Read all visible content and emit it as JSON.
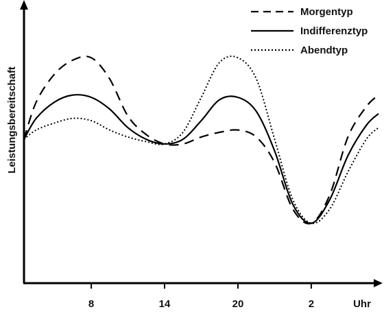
{
  "chart_data": {
    "type": "line",
    "xlabel": "Uhr",
    "ylabel": "Leistungsbereitschaft",
    "x_ticks": [
      "8",
      "14",
      "20",
      "2"
    ],
    "x_tick_values": [
      8,
      14,
      20,
      26
    ],
    "xlim": [
      2.5,
      31.5
    ],
    "ylim": [
      0,
      100
    ],
    "grid": false,
    "legend_position": "top-right",
    "series": [
      {
        "name": "Morgentyp",
        "style": "dashed",
        "x": [
          2.5,
          3.5,
          5,
          6.5,
          8,
          9.5,
          11,
          12.5,
          14,
          15.5,
          17,
          18.5,
          20,
          21.5,
          23,
          24.5,
          26,
          27.5,
          29,
          30.5,
          31.5
        ],
        "y": [
          52,
          68,
          80,
          86,
          87,
          78,
          62,
          54,
          50,
          50,
          53,
          55,
          56,
          53,
          42,
          22,
          16,
          28,
          53,
          66,
          71
        ]
      },
      {
        "name": "Indifferenztyp",
        "style": "solid",
        "x": [
          2.5,
          3.5,
          5,
          6.5,
          8,
          9.5,
          11,
          12.5,
          14,
          15.5,
          17,
          18.5,
          20,
          21.5,
          23,
          24.5,
          26,
          27.5,
          29,
          30.5,
          31.5
        ],
        "y": [
          52,
          61,
          68,
          71,
          70,
          65,
          57,
          52,
          50,
          52,
          60,
          69,
          70,
          64,
          47,
          24,
          16,
          26,
          45,
          58,
          63
        ]
      },
      {
        "name": "Abendtyp",
        "style": "dotted",
        "x": [
          2.5,
          3.5,
          5,
          6.5,
          8,
          9.5,
          11,
          12.5,
          14,
          15.5,
          17,
          18.5,
          20,
          21.5,
          23,
          24.5,
          26,
          27.5,
          29,
          30.5,
          31.5
        ],
        "y": [
          52,
          56,
          59,
          61,
          60,
          56,
          53,
          51,
          50,
          55,
          70,
          85,
          87,
          78,
          52,
          26,
          16,
          22,
          38,
          52,
          57
        ]
      }
    ]
  }
}
